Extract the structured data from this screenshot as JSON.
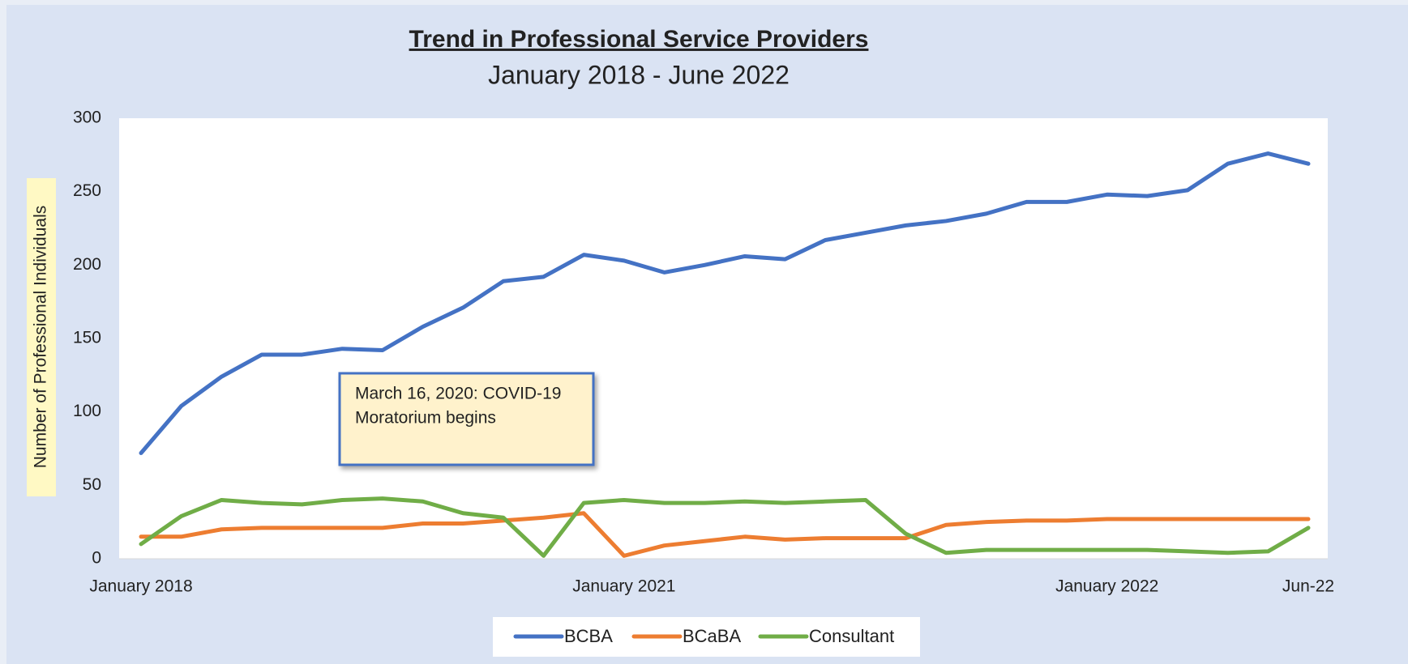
{
  "chart_data": {
    "type": "line",
    "title": "Trend in Professional Service Providers",
    "subtitle": "January 2018 - June 2022",
    "y_label": "Number of Professional Individuals",
    "annotation": [
      "March 16, 2020: COVID-19",
      "Moratorium begins"
    ],
    "categories": [
      "January 2018",
      null,
      null,
      null,
      null,
      null,
      null,
      null,
      null,
      null,
      null,
      null,
      "January 2021",
      null,
      null,
      null,
      null,
      null,
      null,
      null,
      null,
      null,
      null,
      null,
      "January 2022",
      null,
      null,
      null,
      null,
      "Jun-22"
    ],
    "series": [
      {
        "name": "BCBA",
        "color": "#4472c4",
        "values": [
          72,
          104,
          124,
          139,
          139,
          143,
          142,
          158,
          171,
          189,
          192,
          207,
          203,
          195,
          200,
          206,
          204,
          217,
          222,
          227,
          230,
          235,
          243,
          243,
          248,
          247,
          251,
          269,
          276,
          269
        ]
      },
      {
        "name": "BCaBA",
        "color": "#ed7d31",
        "values": [
          15,
          15,
          20,
          21,
          21,
          21,
          21,
          24,
          24,
          26,
          28,
          31,
          2,
          9,
          12,
          15,
          13,
          14,
          14,
          14,
          23,
          25,
          26,
          26,
          27,
          27,
          27,
          27,
          27,
          27
        ]
      },
      {
        "name": "Consultant",
        "color": "#70ad47",
        "values": [
          10,
          29,
          40,
          38,
          37,
          40,
          41,
          39,
          31,
          28,
          2,
          38,
          40,
          38,
          38,
          39,
          38,
          39,
          40,
          17,
          4,
          6,
          6,
          6,
          6,
          6,
          5,
          4,
          5,
          21
        ]
      }
    ],
    "ylim": [
      0,
      300
    ],
    "yticks": [
      0,
      50,
      100,
      150,
      200,
      250,
      300
    ],
    "grid": false,
    "legend": "bottom"
  }
}
